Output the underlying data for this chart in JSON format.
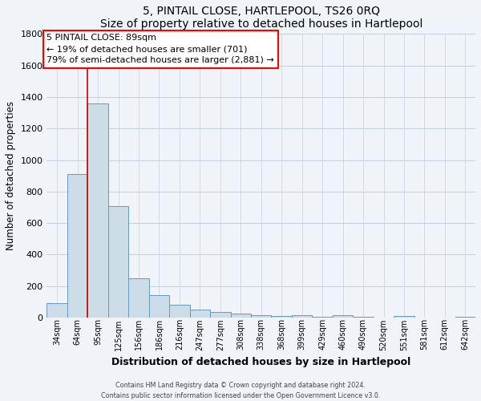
{
  "title": "5, PINTAIL CLOSE, HARTLEPOOL, TS26 0RQ",
  "subtitle": "Size of property relative to detached houses in Hartlepool",
  "xlabel": "Distribution of detached houses by size in Hartlepool",
  "ylabel": "Number of detached properties",
  "bar_labels": [
    "34sqm",
    "64sqm",
    "95sqm",
    "125sqm",
    "156sqm",
    "186sqm",
    "216sqm",
    "247sqm",
    "277sqm",
    "308sqm",
    "338sqm",
    "368sqm",
    "399sqm",
    "429sqm",
    "460sqm",
    "490sqm",
    "520sqm",
    "551sqm",
    "581sqm",
    "612sqm",
    "642sqm"
  ],
  "bar_values": [
    90,
    910,
    1360,
    705,
    250,
    140,
    80,
    52,
    35,
    25,
    15,
    10,
    15,
    5,
    12,
    3,
    0,
    8,
    0,
    0,
    3
  ],
  "bar_color": "#ccdde8",
  "bar_edge_color": "#6699bb",
  "red_line_x": 2,
  "ylim": [
    0,
    1800
  ],
  "yticks": [
    0,
    200,
    400,
    600,
    800,
    1000,
    1200,
    1400,
    1600,
    1800
  ],
  "annotation_box_title": "5 PINTAIL CLOSE: 89sqm",
  "annotation_line1": "← 19% of detached houses are smaller (701)",
  "annotation_line2": "79% of semi-detached houses are larger (2,881) →",
  "footer_line1": "Contains HM Land Registry data © Crown copyright and database right 2024.",
  "footer_line2": "Contains public sector information licensed under the Open Government Licence v3.0.",
  "bg_color": "#f0f4f8",
  "grid_color": "#c8d0d8"
}
